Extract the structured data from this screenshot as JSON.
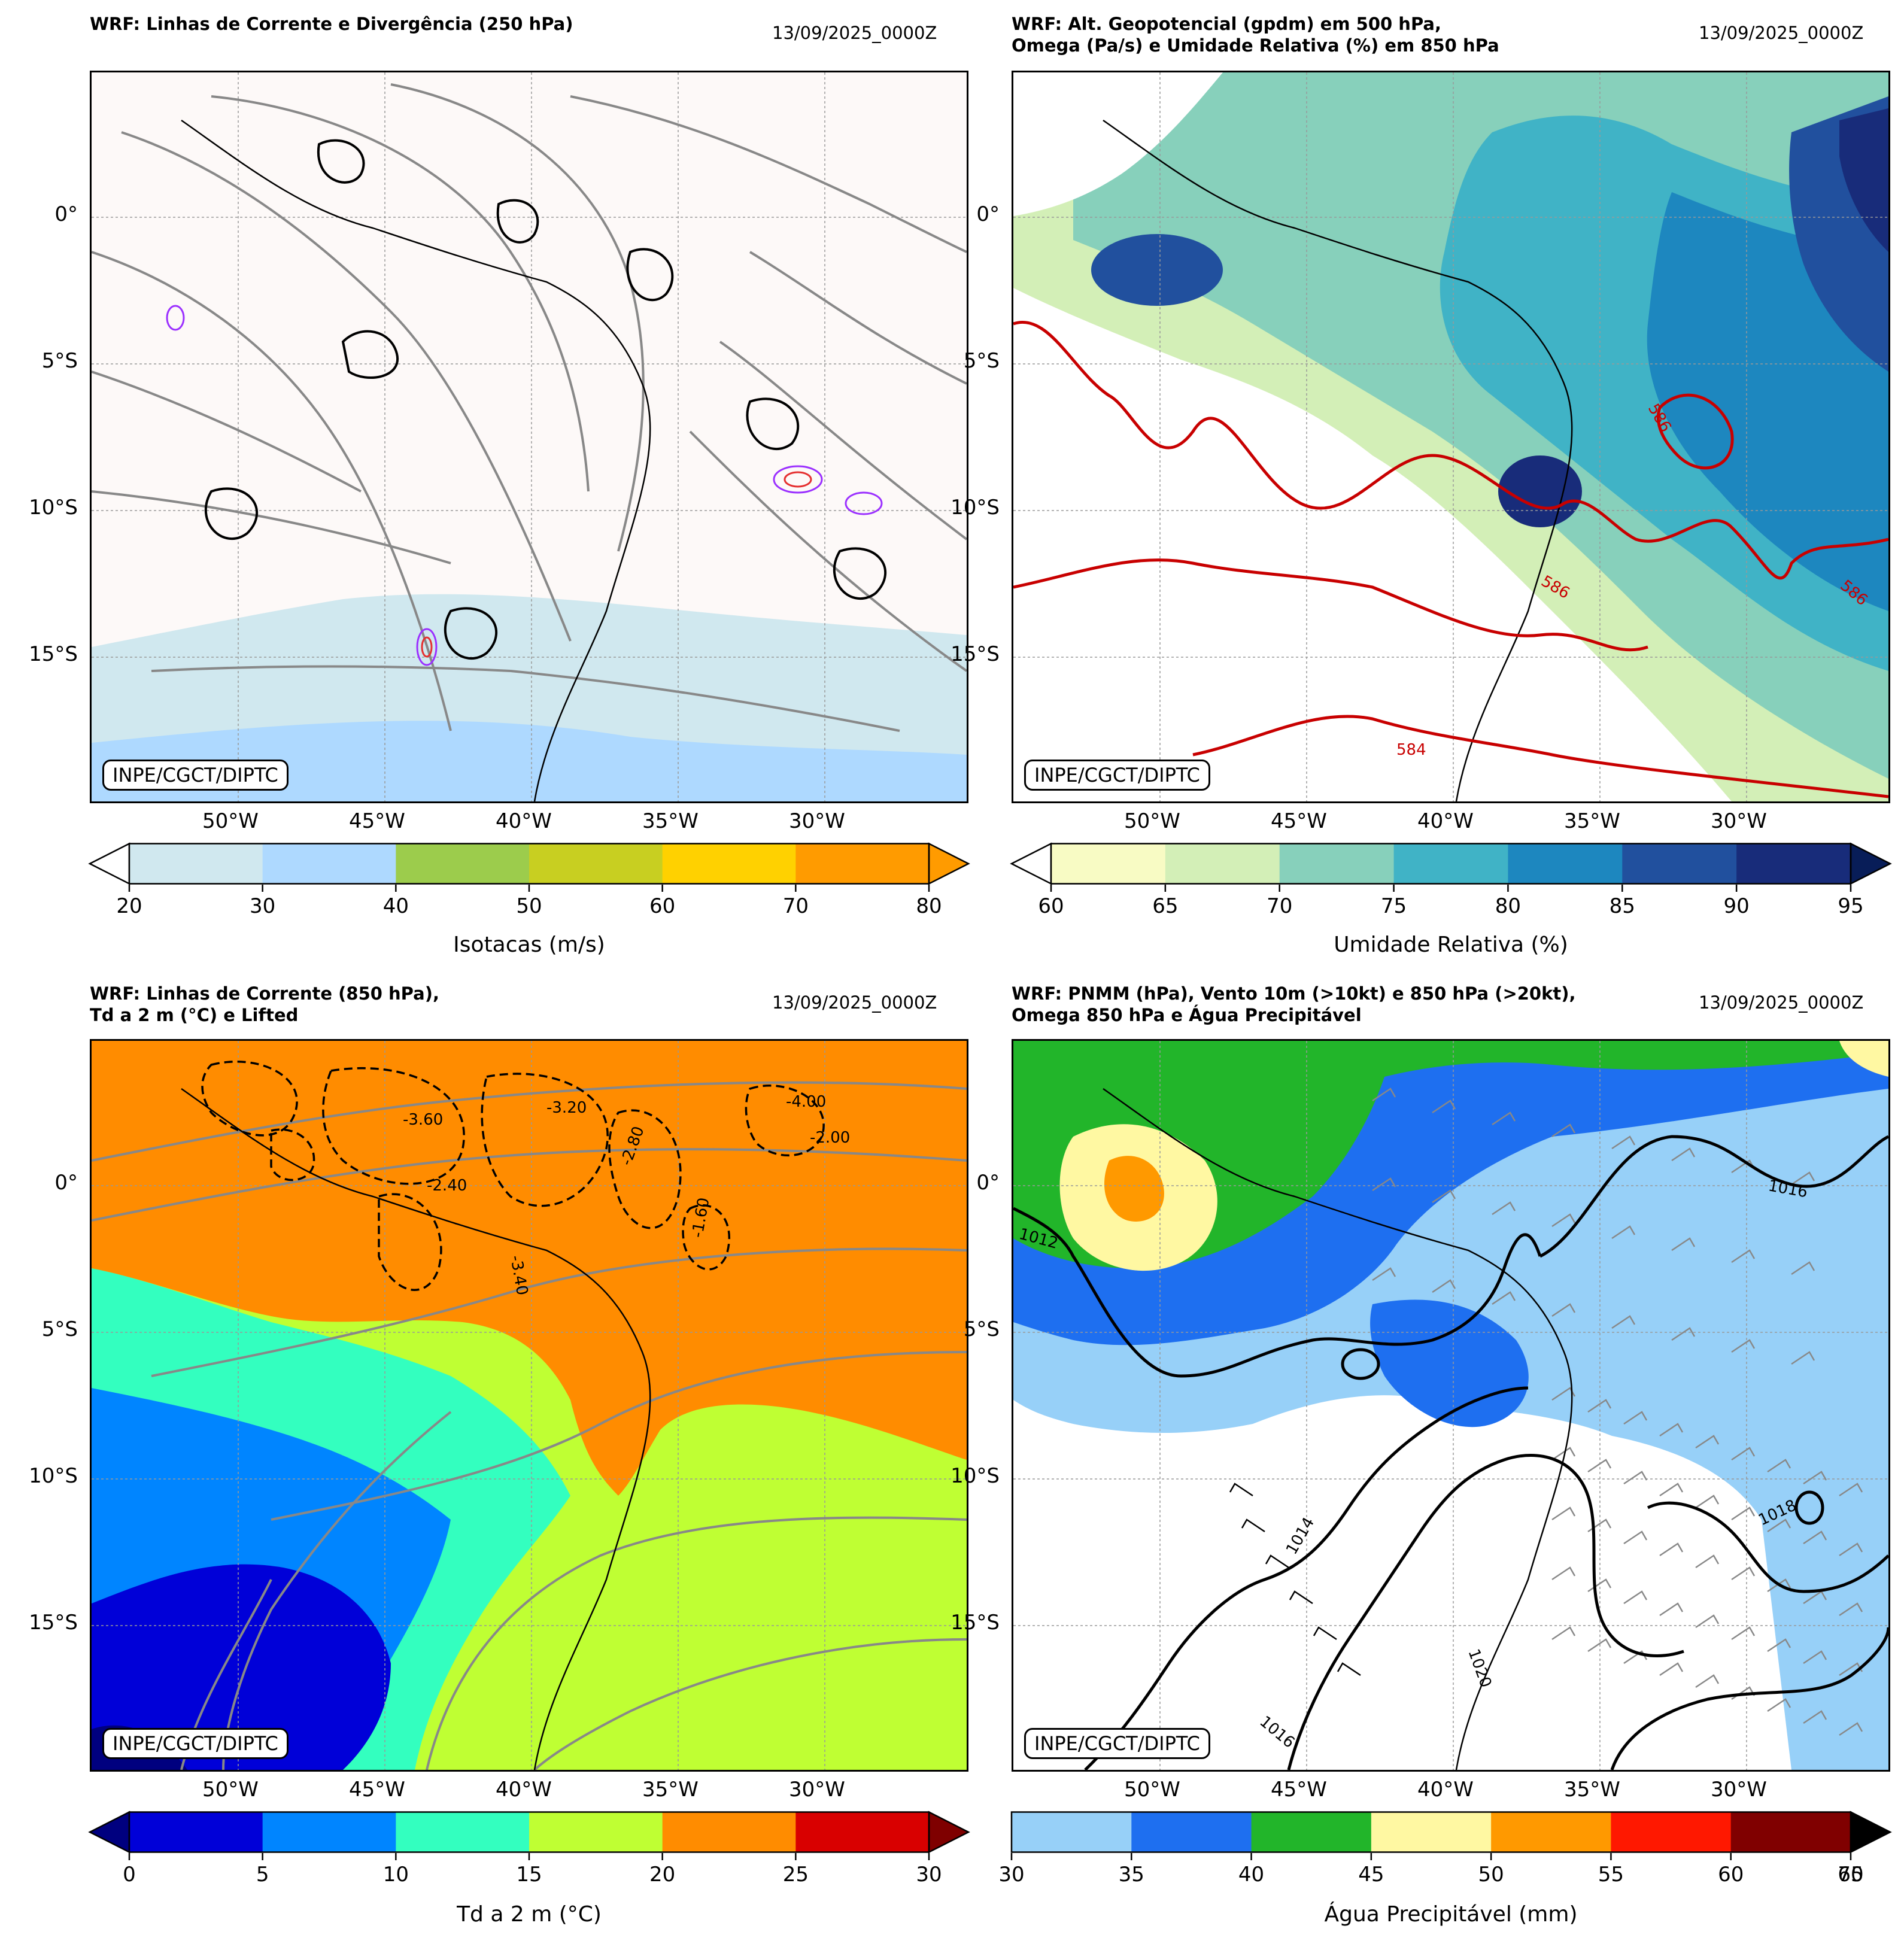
{
  "panels": [
    {
      "title": "WRF: Linhas de Corrente e Divergência (250 hPa)",
      "date": "13/09/2025_0000Z",
      "badge": "INPE/CGCT/DIPTC",
      "colorbar": {
        "label": "Isotacas (m/s)",
        "ticks": [
          "20",
          "30",
          "40",
          "50",
          "60",
          "70",
          "80"
        ],
        "colors": [
          "#d0e8ef",
          "#aed9ff",
          "#9ccc4c",
          "#c8cf21",
          "#ffd100",
          "#ff9b00"
        ],
        "extend_low_color": "#ffffff",
        "extend_high_color": "#ff9b00"
      },
      "field_colors": {
        "background": "#fdf9f8",
        "band1": "#d0e8ef",
        "band2": "#aed9ff"
      }
    },
    {
      "title": "WRF: Alt. Geopotencial (gpdm) em 500 hPa,\nOmega (Pa/s) e Umidade Relativa (%) em 850 hPa",
      "date": "13/09/2025_0000Z",
      "badge": "INPE/CGCT/DIPTC",
      "contour_labels": [
        "586",
        "586",
        "586",
        "584"
      ],
      "colorbar": {
        "label": "Umidade Relativa (%)",
        "ticks": [
          "60",
          "65",
          "70",
          "75",
          "80",
          "85",
          "90",
          "95"
        ],
        "colors": [
          "#f8fbc4",
          "#d3efb7",
          "#87d0bb",
          "#40b3c6",
          "#1d87bf",
          "#21509e",
          "#182c7a"
        ],
        "extend_low_color": "#ffffff",
        "extend_high_color": "#081d58"
      }
    },
    {
      "title": "WRF: Linhas de Corrente (850 hPa),\nTd a 2 m (°C) e Lifted",
      "date": "13/09/2025_0000Z",
      "badge": "INPE/CGCT/DIPTC",
      "contour_labels": [
        "-3.60",
        "-3.20",
        "-2.80",
        "-2.40",
        "-2.00",
        "-1.60",
        "-4.00",
        "-3.40"
      ],
      "colorbar": {
        "label": "Td a 2 m (°C)",
        "ticks": [
          "0",
          "5",
          "10",
          "15",
          "20",
          "25",
          "30"
        ],
        "colors": [
          "#0000d8",
          "#0085ff",
          "#33ffbf",
          "#bfff33",
          "#ff8c00",
          "#d90000"
        ],
        "extend_low_color": "#00007f",
        "extend_high_color": "#7f0000"
      }
    },
    {
      "title": "WRF: PNMM (hPa), Vento 10m (>10kt) e 850 hPa (>20kt),\nOmega 850 hPa e Água Precipitável",
      "date": "13/09/2025_0000Z",
      "badge": "INPE/CGCT/DIPTC",
      "contour_labels": [
        "1016",
        "1012",
        "1014",
        "1020",
        "1018",
        "1016"
      ],
      "colorbar": {
        "label": "Água Precipitável (mm)",
        "ticks": [
          "30",
          "35",
          "40",
          "45",
          "50",
          "55",
          "60",
          "70"
        ],
        "overlap_tick": "65",
        "colors": [
          "#97d0f8",
          "#1e6ff0",
          "#22b52a",
          "#fff8a2",
          "#ff9900",
          "#ff1800",
          "#800000",
          "#4d0000"
        ],
        "extend_high_color": "#000000"
      }
    }
  ],
  "axes": {
    "x_ticks": [
      "50°W",
      "45°W",
      "40°W",
      "35°W",
      "30°W"
    ],
    "y_ticks": [
      "0°",
      "5°S",
      "10°S",
      "15°S"
    ]
  }
}
